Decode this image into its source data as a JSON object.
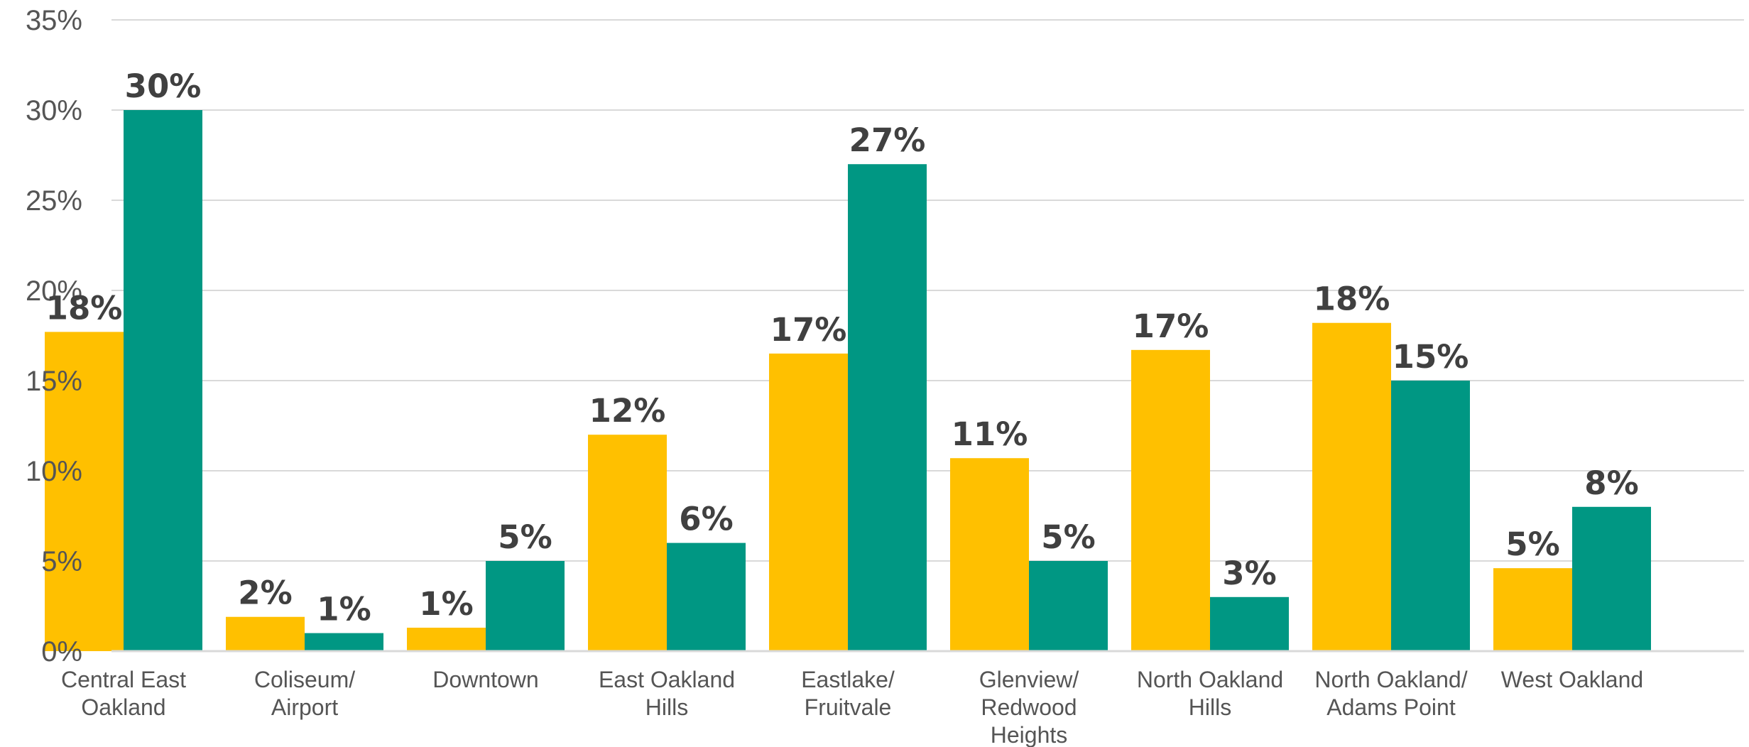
{
  "chart_data": {
    "type": "bar",
    "categories": [
      [
        "Central East",
        "Oakland"
      ],
      [
        "Coliseum/",
        "Airport"
      ],
      [
        "Downtown"
      ],
      [
        "East Oakland",
        "Hills"
      ],
      [
        "Eastlake/",
        "Fruitvale"
      ],
      [
        "Glenview/",
        "Redwood",
        "Heights"
      ],
      [
        "North Oakland",
        "Hills"
      ],
      [
        "North Oakland/",
        "Adams Point"
      ],
      [
        "West Oakland"
      ]
    ],
    "series": [
      {
        "color": "#FFC000",
        "values": [
          17.7,
          1.9,
          1.3,
          12.0,
          16.5,
          10.7,
          16.7,
          18.2,
          4.6
        ],
        "labels": [
          "18%",
          "2%",
          "1%",
          "12%",
          "17%",
          "11%",
          "17%",
          "18%",
          "5%"
        ]
      },
      {
        "color": "#009783",
        "values": [
          30,
          1,
          5,
          6,
          27,
          5,
          3,
          15,
          8
        ],
        "labels": [
          "30%",
          "1%",
          "5%",
          "6%",
          "27%",
          "5%",
          "3%",
          "15%",
          "8%"
        ]
      }
    ],
    "ylim": [
      0,
      35
    ],
    "yticks": [
      0,
      5,
      10,
      15,
      20,
      25,
      30,
      35
    ],
    "ytick_labels": [
      "0%",
      "5%",
      "10%",
      "15%",
      "20%",
      "25%",
      "30%",
      "35%"
    ],
    "grid": true,
    "legend": "none",
    "title": "",
    "xlabel": "",
    "ylabel": ""
  }
}
